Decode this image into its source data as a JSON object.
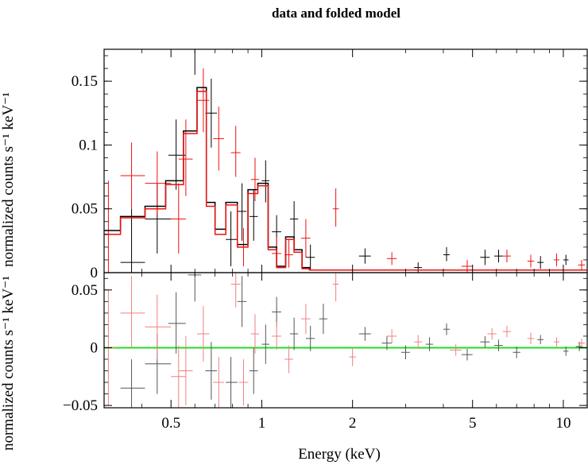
{
  "chart_data": [
    {
      "type": "step-errorbar",
      "title": "data and folded model",
      "xlabel": "Energy (keV)",
      "ylabel": "normalized counts s⁻¹ keV⁻¹",
      "x_scale": "log",
      "xlim": [
        0.3,
        12
      ],
      "ylim": [
        0,
        0.175
      ],
      "x_ticks": [
        0.5,
        1,
        2,
        5,
        10
      ],
      "x_tick_labels": [
        "0.5",
        "1",
        "2",
        "5",
        "10"
      ],
      "y_ticks": [
        0,
        0.05,
        0.1,
        0.15
      ],
      "y_tick_labels": [
        "0",
        "0.05",
        "0.1",
        "0.15"
      ],
      "series": [
        {
          "color": "#000000",
          "data": [
            {
              "x": 0.37,
              "y": 0.008,
              "xlo": 0.34,
              "xhi": 0.41,
              "ylo": 0.0,
              "yhi": 0.05
            },
            {
              "x": 0.45,
              "y": 0.042,
              "xlo": 0.41,
              "xhi": 0.5,
              "ylo": 0.015,
              "yhi": 0.07
            },
            {
              "x": 0.52,
              "y": 0.092,
              "xlo": 0.49,
              "xhi": 0.56,
              "ylo": 0.065,
              "yhi": 0.12
            },
            {
              "x": 0.6,
              "y": 0.175,
              "xlo": 0.57,
              "xhi": 0.63,
              "ylo": 0.155,
              "yhi": 0.2
            },
            {
              "x": 0.68,
              "y": 0.125,
              "xlo": 0.65,
              "xhi": 0.71,
              "ylo": 0.098,
              "yhi": 0.152
            },
            {
              "x": 0.79,
              "y": 0.026,
              "xlo": 0.76,
              "xhi": 0.83,
              "ylo": 0.005,
              "yhi": 0.048
            },
            {
              "x": 0.86,
              "y": 0.048,
              "xlo": 0.83,
              "xhi": 0.89,
              "ylo": 0.025,
              "yhi": 0.07
            },
            {
              "x": 0.94,
              "y": 0.044,
              "xlo": 0.91,
              "xhi": 0.97,
              "ylo": 0.025,
              "yhi": 0.065
            },
            {
              "x": 1.03,
              "y": 0.072,
              "xlo": 1.0,
              "xhi": 1.06,
              "ylo": 0.055,
              "yhi": 0.088
            },
            {
              "x": 1.12,
              "y": 0.032,
              "xlo": 1.08,
              "xhi": 1.16,
              "ylo": 0.018,
              "yhi": 0.045
            },
            {
              "x": 1.28,
              "y": 0.042,
              "xlo": 1.24,
              "xhi": 1.32,
              "ylo": 0.028,
              "yhi": 0.056
            },
            {
              "x": 1.45,
              "y": 0.012,
              "xlo": 1.4,
              "xhi": 1.5,
              "ylo": 0.002,
              "yhi": 0.022
            },
            {
              "x": 2.2,
              "y": 0.013,
              "xlo": 2.1,
              "xhi": 2.3,
              "ylo": 0.007,
              "yhi": 0.019
            },
            {
              "x": 3.3,
              "y": 0.004,
              "xlo": 3.2,
              "xhi": 3.4,
              "ylo": 0.0,
              "yhi": 0.008
            },
            {
              "x": 4.1,
              "y": 0.014,
              "xlo": 4.0,
              "xhi": 4.2,
              "ylo": 0.009,
              "yhi": 0.02
            },
            {
              "x": 5.5,
              "y": 0.012,
              "xlo": 5.3,
              "xhi": 5.7,
              "ylo": 0.006,
              "yhi": 0.018
            },
            {
              "x": 6.1,
              "y": 0.013,
              "xlo": 5.9,
              "xhi": 6.3,
              "ylo": 0.008,
              "yhi": 0.018
            },
            {
              "x": 8.4,
              "y": 0.008,
              "xlo": 8.2,
              "xhi": 8.6,
              "ylo": 0.003,
              "yhi": 0.013
            },
            {
              "x": 10.2,
              "y": 0.01,
              "xlo": 10.0,
              "xhi": 10.4,
              "ylo": 0.006,
              "yhi": 0.014
            }
          ]
        },
        {
          "color": "#ee1111",
          "data": [
            {
              "x": 0.31,
              "y": 0.03,
              "xlo": 0.3,
              "xhi": 0.33,
              "ylo": 0.0,
              "yhi": 0.072
            },
            {
              "x": 0.37,
              "y": 0.076,
              "xlo": 0.34,
              "xhi": 0.41,
              "ylo": 0.05,
              "yhi": 0.102
            },
            {
              "x": 0.45,
              "y": 0.07,
              "xlo": 0.41,
              "xhi": 0.5,
              "ylo": 0.045,
              "yhi": 0.095
            },
            {
              "x": 0.53,
              "y": 0.042,
              "xlo": 0.5,
              "xhi": 0.56,
              "ylo": 0.015,
              "yhi": 0.07
            },
            {
              "x": 0.56,
              "y": 0.089,
              "xlo": 0.53,
              "xhi": 0.59,
              "ylo": 0.06,
              "yhi": 0.12
            },
            {
              "x": 0.64,
              "y": 0.135,
              "xlo": 0.61,
              "xhi": 0.67,
              "ylo": 0.11,
              "yhi": 0.16
            },
            {
              "x": 0.72,
              "y": 0.105,
              "xlo": 0.69,
              "xhi": 0.75,
              "ylo": 0.08,
              "yhi": 0.13
            },
            {
              "x": 0.82,
              "y": 0.094,
              "xlo": 0.79,
              "xhi": 0.85,
              "ylo": 0.075,
              "yhi": 0.115
            },
            {
              "x": 0.87,
              "y": 0.02,
              "xlo": 0.84,
              "xhi": 0.9,
              "ylo": 0.005,
              "yhi": 0.035
            },
            {
              "x": 0.95,
              "y": 0.073,
              "xlo": 0.92,
              "xhi": 0.98,
              "ylo": 0.056,
              "yhi": 0.09
            },
            {
              "x": 1.12,
              "y": 0.015,
              "xlo": 1.08,
              "xhi": 1.16,
              "ylo": 0.005,
              "yhi": 0.028
            },
            {
              "x": 1.23,
              "y": 0.014,
              "xlo": 1.19,
              "xhi": 1.27,
              "ylo": 0.004,
              "yhi": 0.026
            },
            {
              "x": 1.4,
              "y": 0.027,
              "xlo": 1.35,
              "xhi": 1.45,
              "ylo": 0.012,
              "yhi": 0.042
            },
            {
              "x": 1.76,
              "y": 0.05,
              "xlo": 1.72,
              "xhi": 1.8,
              "ylo": 0.036,
              "yhi": 0.066
            },
            {
              "x": 2.7,
              "y": 0.011,
              "xlo": 2.6,
              "xhi": 2.8,
              "ylo": 0.006,
              "yhi": 0.016
            },
            {
              "x": 4.8,
              "y": 0.005,
              "xlo": 4.6,
              "xhi": 5.0,
              "ylo": 0.0,
              "yhi": 0.01
            },
            {
              "x": 6.5,
              "y": 0.013,
              "xlo": 6.3,
              "xhi": 6.7,
              "ylo": 0.008,
              "yhi": 0.018
            },
            {
              "x": 7.8,
              "y": 0.009,
              "xlo": 7.6,
              "xhi": 8.0,
              "ylo": 0.004,
              "yhi": 0.014
            },
            {
              "x": 9.5,
              "y": 0.01,
              "xlo": 9.3,
              "xhi": 9.7,
              "ylo": 0.005,
              "yhi": 0.015
            },
            {
              "x": 11.5,
              "y": 0.006,
              "xlo": 11.2,
              "xhi": 11.8,
              "ylo": 0.002,
              "yhi": 0.01
            }
          ]
        }
      ],
      "models": [
        {
          "color": "#000000",
          "edges": [
            0.3,
            0.34,
            0.41,
            0.48,
            0.55,
            0.61,
            0.655,
            0.7,
            0.76,
            0.83,
            0.9,
            0.97,
            1.05,
            1.12,
            1.2,
            1.28,
            1.36,
            1.44,
            12
          ],
          "values": [
            0.033,
            0.044,
            0.052,
            0.072,
            0.111,
            0.145,
            0.055,
            0.034,
            0.055,
            0.022,
            0.065,
            0.07,
            0.02,
            0.005,
            0.028,
            0.018,
            0.004,
            0.002
          ]
        },
        {
          "color": "#ee1111",
          "edges": [
            0.3,
            0.34,
            0.41,
            0.48,
            0.55,
            0.61,
            0.655,
            0.7,
            0.76,
            0.83,
            0.9,
            0.97,
            1.05,
            1.12,
            1.2,
            1.28,
            1.36,
            1.44,
            12
          ],
          "values": [
            0.03,
            0.043,
            0.05,
            0.069,
            0.109,
            0.142,
            0.052,
            0.03,
            0.053,
            0.02,
            0.062,
            0.068,
            0.018,
            0.004,
            0.026,
            0.016,
            0.003,
            0.002
          ]
        }
      ]
    },
    {
      "type": "errorbar",
      "ylabel": "normalized counts s⁻¹ keV⁻¹",
      "x_scale": "log",
      "xlim": [
        0.3,
        12
      ],
      "ylim": [
        -0.052,
        0.065
      ],
      "y_ticks": [
        -0.05,
        0,
        0.05
      ],
      "y_tick_labels": [
        "−0.05",
        "0",
        "0.05"
      ],
      "zero_line_color": "#22dd22",
      "series": [
        {
          "color": "#555555",
          "data": [
            {
              "x": 0.37,
              "y": -0.035,
              "xlo": 0.34,
              "xhi": 0.41,
              "ylo": -0.06,
              "yhi": -0.01
            },
            {
              "x": 0.45,
              "y": -0.014,
              "xlo": 0.41,
              "xhi": 0.5,
              "ylo": -0.04,
              "yhi": 0.012
            },
            {
              "x": 0.52,
              "y": 0.021,
              "xlo": 0.49,
              "xhi": 0.56,
              "ylo": -0.005,
              "yhi": 0.048
            },
            {
              "x": 0.6,
              "y": 0.063,
              "xlo": 0.57,
              "xhi": 0.63,
              "ylo": 0.04,
              "yhi": 0.075
            },
            {
              "x": 0.68,
              "y": -0.02,
              "xlo": 0.65,
              "xhi": 0.71,
              "ylo": -0.045,
              "yhi": 0.005
            },
            {
              "x": 0.79,
              "y": -0.03,
              "xlo": 0.76,
              "xhi": 0.83,
              "ylo": -0.052,
              "yhi": -0.008
            },
            {
              "x": 0.86,
              "y": 0.04,
              "xlo": 0.83,
              "xhi": 0.89,
              "ylo": 0.018,
              "yhi": 0.062
            },
            {
              "x": 0.94,
              "y": -0.02,
              "xlo": 0.91,
              "xhi": 0.97,
              "ylo": -0.04,
              "yhi": 0.0
            },
            {
              "x": 1.03,
              "y": 0.003,
              "xlo": 1.0,
              "xhi": 1.06,
              "ylo": -0.014,
              "yhi": 0.02
            },
            {
              "x": 1.12,
              "y": 0.031,
              "xlo": 1.08,
              "xhi": 1.16,
              "ylo": 0.018,
              "yhi": 0.044
            },
            {
              "x": 1.28,
              "y": 0.012,
              "xlo": 1.24,
              "xhi": 1.32,
              "ylo": -0.002,
              "yhi": 0.026
            },
            {
              "x": 1.45,
              "y": 0.008,
              "xlo": 1.4,
              "xhi": 1.5,
              "ylo": -0.003,
              "yhi": 0.019
            },
            {
              "x": 1.6,
              "y": 0.025,
              "xlo": 1.55,
              "xhi": 1.65,
              "ylo": 0.012,
              "yhi": 0.038
            },
            {
              "x": 2.2,
              "y": 0.012,
              "xlo": 2.1,
              "xhi": 2.3,
              "ylo": 0.006,
              "yhi": 0.018
            },
            {
              "x": 2.6,
              "y": 0.004,
              "xlo": 2.5,
              "xhi": 2.7,
              "ylo": -0.002,
              "yhi": 0.01
            },
            {
              "x": 3.0,
              "y": -0.004,
              "xlo": 2.9,
              "xhi": 3.1,
              "ylo": -0.01,
              "yhi": 0.002
            },
            {
              "x": 3.6,
              "y": 0.003,
              "xlo": 3.5,
              "xhi": 3.7,
              "ylo": -0.003,
              "yhi": 0.009
            },
            {
              "x": 4.1,
              "y": 0.016,
              "xlo": 4.0,
              "xhi": 4.2,
              "ylo": 0.011,
              "yhi": 0.021
            },
            {
              "x": 4.8,
              "y": -0.006,
              "xlo": 4.6,
              "xhi": 5.0,
              "ylo": -0.011,
              "yhi": -0.001
            },
            {
              "x": 5.5,
              "y": 0.005,
              "xlo": 5.3,
              "xhi": 5.7,
              "ylo": 0.0,
              "yhi": 0.01
            },
            {
              "x": 6.1,
              "y": 0.002,
              "xlo": 5.9,
              "xhi": 6.3,
              "ylo": -0.003,
              "yhi": 0.007
            },
            {
              "x": 7.0,
              "y": -0.004,
              "xlo": 6.8,
              "xhi": 7.2,
              "ylo": -0.009,
              "yhi": 0.001
            },
            {
              "x": 8.4,
              "y": 0.007,
              "xlo": 8.2,
              "xhi": 8.6,
              "ylo": 0.003,
              "yhi": 0.011
            },
            {
              "x": 10.2,
              "y": -0.003,
              "xlo": 10.0,
              "xhi": 10.4,
              "ylo": -0.007,
              "yhi": 0.001
            },
            {
              "x": 11.3,
              "y": 0.001,
              "xlo": 11.0,
              "xhi": 11.6,
              "ylo": -0.003,
              "yhi": 0.005
            }
          ]
        },
        {
          "color": "#f08080",
          "data": [
            {
              "x": 0.31,
              "y": 0.0,
              "xlo": 0.3,
              "xhi": 0.33,
              "ylo": -0.05,
              "yhi": 0.05
            },
            {
              "x": 0.37,
              "y": 0.03,
              "xlo": 0.34,
              "xhi": 0.41,
              "ylo": 0.0,
              "yhi": 0.062
            },
            {
              "x": 0.45,
              "y": 0.018,
              "xlo": 0.41,
              "xhi": 0.5,
              "ylo": -0.01,
              "yhi": 0.046
            },
            {
              "x": 0.53,
              "y": -0.025,
              "xlo": 0.5,
              "xhi": 0.56,
              "ylo": -0.052,
              "yhi": 0.002
            },
            {
              "x": 0.56,
              "y": -0.02,
              "xlo": 0.53,
              "xhi": 0.59,
              "ylo": -0.05,
              "yhi": 0.01
            },
            {
              "x": 0.64,
              "y": 0.012,
              "xlo": 0.61,
              "xhi": 0.67,
              "ylo": -0.012,
              "yhi": 0.036
            },
            {
              "x": 0.72,
              "y": -0.03,
              "xlo": 0.69,
              "xhi": 0.75,
              "ylo": -0.052,
              "yhi": -0.008
            },
            {
              "x": 0.82,
              "y": 0.055,
              "xlo": 0.79,
              "xhi": 0.85,
              "ylo": 0.035,
              "yhi": 0.065
            },
            {
              "x": 0.87,
              "y": -0.03,
              "xlo": 0.84,
              "xhi": 0.9,
              "ylo": -0.05,
              "yhi": -0.01
            },
            {
              "x": 0.95,
              "y": 0.012,
              "xlo": 0.92,
              "xhi": 0.98,
              "ylo": -0.005,
              "yhi": 0.029
            },
            {
              "x": 1.12,
              "y": 0.01,
              "xlo": 1.08,
              "xhi": 1.16,
              "ylo": -0.002,
              "yhi": 0.022
            },
            {
              "x": 1.23,
              "y": -0.01,
              "xlo": 1.19,
              "xhi": 1.27,
              "ylo": -0.022,
              "yhi": 0.002
            },
            {
              "x": 1.4,
              "y": 0.025,
              "xlo": 1.35,
              "xhi": 1.45,
              "ylo": 0.012,
              "yhi": 0.038
            },
            {
              "x": 1.76,
              "y": 0.055,
              "xlo": 1.72,
              "xhi": 1.8,
              "ylo": 0.04,
              "yhi": 0.065
            },
            {
              "x": 2.0,
              "y": -0.008,
              "xlo": 1.95,
              "xhi": 2.05,
              "ylo": -0.016,
              "yhi": 0.0
            },
            {
              "x": 2.7,
              "y": 0.01,
              "xlo": 2.6,
              "xhi": 2.8,
              "ylo": 0.004,
              "yhi": 0.016
            },
            {
              "x": 3.3,
              "y": 0.005,
              "xlo": 3.2,
              "xhi": 3.4,
              "ylo": -0.001,
              "yhi": 0.011
            },
            {
              "x": 4.4,
              "y": -0.002,
              "xlo": 4.2,
              "xhi": 4.6,
              "ylo": -0.007,
              "yhi": 0.003
            },
            {
              "x": 5.8,
              "y": 0.012,
              "xlo": 5.6,
              "xhi": 6.0,
              "ylo": 0.007,
              "yhi": 0.017
            },
            {
              "x": 6.5,
              "y": 0.014,
              "xlo": 6.3,
              "xhi": 6.7,
              "ylo": 0.009,
              "yhi": 0.019
            },
            {
              "x": 7.8,
              "y": 0.008,
              "xlo": 7.6,
              "xhi": 8.0,
              "ylo": 0.003,
              "yhi": 0.013
            },
            {
              "x": 9.5,
              "y": 0.005,
              "xlo": 9.3,
              "xhi": 9.7,
              "ylo": 0.001,
              "yhi": 0.009
            },
            {
              "x": 11.5,
              "y": 0.004,
              "xlo": 11.2,
              "xhi": 11.8,
              "ylo": 0.0,
              "yhi": 0.008
            }
          ]
        }
      ]
    }
  ]
}
